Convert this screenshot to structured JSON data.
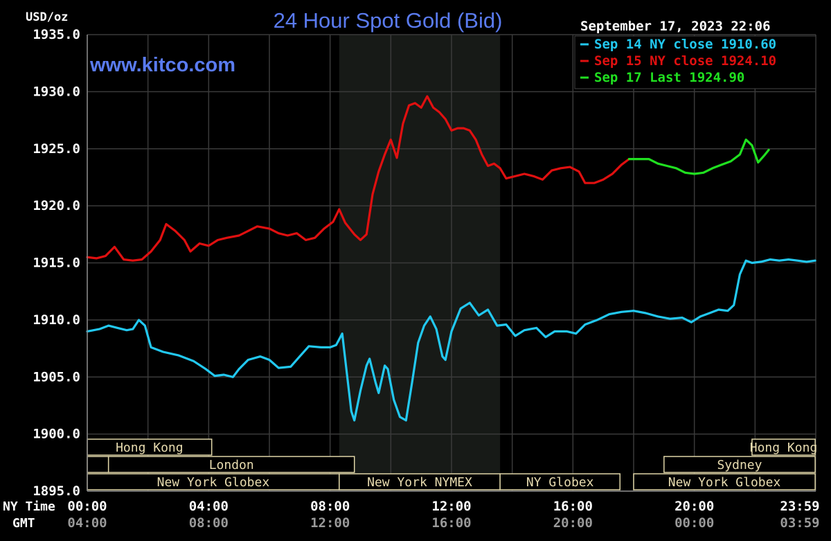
{
  "title": "24 Hour Spot Gold (Bid)",
  "unit_label": "USD/oz",
  "watermark": "www.kitco.com",
  "timestamp": "September 17, 2023 22:06",
  "row_labels": {
    "ny_time": "NY Time",
    "gmt": "GMT"
  },
  "colors": {
    "background": "#000000",
    "grid": "#3a3a3a",
    "shade": "#171a17",
    "title": "#5a7bf0",
    "sep14": "#22c8f0",
    "sep15": "#e01010",
    "sep17": "#20e020",
    "session_border": "#e0d6a8",
    "session_text": "#e8dcb0",
    "axis_text": "#ffffff",
    "gmt_text": "#9a9a9a"
  },
  "chart_data": {
    "type": "line",
    "ylabel": "USD/oz",
    "ylim": [
      1895.0,
      1935.0
    ],
    "y_ticks": [
      "1935.0",
      "1930.0",
      "1925.0",
      "1920.0",
      "1915.0",
      "1910.0",
      "1905.0",
      "1900.0",
      "1895.0"
    ],
    "xlim": [
      0,
      24
    ],
    "x_ticks_ny": [
      "00:00",
      "04:00",
      "08:00",
      "12:00",
      "16:00",
      "20:00",
      "23:59"
    ],
    "x_ticks_gmt": [
      "04:00",
      "08:00",
      "12:00",
      "16:00",
      "20:00",
      "00:00",
      "03:59"
    ],
    "grid": true,
    "shaded_period_hours": [
      8.3,
      13.6
    ],
    "legend": {
      "position": "top-right"
    },
    "series": [
      {
        "name": "Sep 14 NY close 1910.60",
        "color_key": "sep14",
        "points": [
          [
            0.0,
            1909.0
          ],
          [
            0.4,
            1909.2
          ],
          [
            0.7,
            1909.5
          ],
          [
            1.0,
            1909.3
          ],
          [
            1.3,
            1909.1
          ],
          [
            1.5,
            1909.2
          ],
          [
            1.7,
            1910.0
          ],
          [
            1.9,
            1909.5
          ],
          [
            2.1,
            1907.6
          ],
          [
            2.5,
            1907.2
          ],
          [
            3.0,
            1906.9
          ],
          [
            3.5,
            1906.4
          ],
          [
            3.9,
            1905.7
          ],
          [
            4.2,
            1905.1
          ],
          [
            4.5,
            1905.2
          ],
          [
            4.8,
            1905.0
          ],
          [
            5.0,
            1905.7
          ],
          [
            5.3,
            1906.5
          ],
          [
            5.7,
            1906.8
          ],
          [
            6.0,
            1906.5
          ],
          [
            6.3,
            1905.8
          ],
          [
            6.7,
            1905.9
          ],
          [
            7.0,
            1906.8
          ],
          [
            7.3,
            1907.7
          ],
          [
            7.7,
            1907.6
          ],
          [
            8.0,
            1907.6
          ],
          [
            8.2,
            1907.8
          ],
          [
            8.4,
            1908.8
          ],
          [
            8.5,
            1906.5
          ],
          [
            8.7,
            1902.0
          ],
          [
            8.8,
            1901.2
          ],
          [
            9.0,
            1903.8
          ],
          [
            9.2,
            1906.0
          ],
          [
            9.3,
            1906.6
          ],
          [
            9.5,
            1904.5
          ],
          [
            9.6,
            1903.6
          ],
          [
            9.8,
            1906.0
          ],
          [
            9.9,
            1905.7
          ],
          [
            10.1,
            1903.0
          ],
          [
            10.3,
            1901.5
          ],
          [
            10.5,
            1901.2
          ],
          [
            10.7,
            1904.5
          ],
          [
            10.9,
            1908.0
          ],
          [
            11.1,
            1909.5
          ],
          [
            11.3,
            1910.3
          ],
          [
            11.5,
            1909.2
          ],
          [
            11.7,
            1906.8
          ],
          [
            11.8,
            1906.5
          ],
          [
            12.0,
            1909.0
          ],
          [
            12.3,
            1911.0
          ],
          [
            12.6,
            1911.5
          ],
          [
            12.9,
            1910.4
          ],
          [
            13.2,
            1910.9
          ],
          [
            13.5,
            1909.5
          ],
          [
            13.8,
            1909.6
          ],
          [
            14.1,
            1908.6
          ],
          [
            14.4,
            1909.1
          ],
          [
            14.8,
            1909.3
          ],
          [
            15.1,
            1908.5
          ],
          [
            15.4,
            1909.0
          ],
          [
            15.8,
            1909.0
          ],
          [
            16.1,
            1908.8
          ],
          [
            16.4,
            1909.6
          ],
          [
            16.8,
            1910.0
          ],
          [
            17.2,
            1910.5
          ],
          [
            17.6,
            1910.7
          ],
          [
            18.0,
            1910.8
          ],
          [
            18.4,
            1910.6
          ],
          [
            18.8,
            1910.3
          ],
          [
            19.2,
            1910.1
          ],
          [
            19.6,
            1910.2
          ],
          [
            19.9,
            1909.8
          ],
          [
            20.2,
            1910.3
          ],
          [
            20.5,
            1910.6
          ],
          [
            20.8,
            1910.9
          ],
          [
            21.1,
            1910.8
          ],
          [
            21.3,
            1911.3
          ],
          [
            21.5,
            1914.0
          ],
          [
            21.7,
            1915.2
          ],
          [
            21.9,
            1915.0
          ],
          [
            22.2,
            1915.1
          ],
          [
            22.5,
            1915.3
          ],
          [
            22.8,
            1915.2
          ],
          [
            23.1,
            1915.3
          ],
          [
            23.4,
            1915.2
          ],
          [
            23.7,
            1915.1
          ],
          [
            23.98,
            1915.2
          ]
        ]
      },
      {
        "name": "Sep 15 NY close 1924.10",
        "color_key": "sep15",
        "points": [
          [
            0.0,
            1915.5
          ],
          [
            0.3,
            1915.4
          ],
          [
            0.6,
            1915.6
          ],
          [
            0.9,
            1916.4
          ],
          [
            1.2,
            1915.3
          ],
          [
            1.5,
            1915.2
          ],
          [
            1.8,
            1915.3
          ],
          [
            2.1,
            1916.0
          ],
          [
            2.4,
            1917.0
          ],
          [
            2.6,
            1918.4
          ],
          [
            2.9,
            1917.8
          ],
          [
            3.2,
            1917.0
          ],
          [
            3.4,
            1916.0
          ],
          [
            3.7,
            1916.7
          ],
          [
            4.0,
            1916.5
          ],
          [
            4.3,
            1917.0
          ],
          [
            4.6,
            1917.2
          ],
          [
            5.0,
            1917.4
          ],
          [
            5.3,
            1917.8
          ],
          [
            5.6,
            1918.2
          ],
          [
            6.0,
            1918.0
          ],
          [
            6.3,
            1917.6
          ],
          [
            6.6,
            1917.4
          ],
          [
            6.9,
            1917.6
          ],
          [
            7.2,
            1917.0
          ],
          [
            7.5,
            1917.2
          ],
          [
            7.8,
            1918.0
          ],
          [
            8.1,
            1918.6
          ],
          [
            8.3,
            1919.7
          ],
          [
            8.5,
            1918.5
          ],
          [
            8.8,
            1917.5
          ],
          [
            9.0,
            1917.0
          ],
          [
            9.2,
            1917.5
          ],
          [
            9.4,
            1921.0
          ],
          [
            9.6,
            1923.0
          ],
          [
            9.8,
            1924.5
          ],
          [
            10.0,
            1925.8
          ],
          [
            10.2,
            1924.2
          ],
          [
            10.4,
            1927.2
          ],
          [
            10.6,
            1928.8
          ],
          [
            10.8,
            1929.0
          ],
          [
            11.0,
            1928.6
          ],
          [
            11.2,
            1929.6
          ],
          [
            11.4,
            1928.6
          ],
          [
            11.6,
            1928.2
          ],
          [
            11.8,
            1927.6
          ],
          [
            12.0,
            1926.6
          ],
          [
            12.2,
            1926.8
          ],
          [
            12.4,
            1926.8
          ],
          [
            12.6,
            1926.6
          ],
          [
            12.8,
            1925.8
          ],
          [
            13.0,
            1924.5
          ],
          [
            13.2,
            1923.5
          ],
          [
            13.4,
            1923.7
          ],
          [
            13.6,
            1923.3
          ],
          [
            13.8,
            1922.4
          ],
          [
            14.1,
            1922.6
          ],
          [
            14.4,
            1922.8
          ],
          [
            14.7,
            1922.6
          ],
          [
            15.0,
            1922.3
          ],
          [
            15.3,
            1923.1
          ],
          [
            15.6,
            1923.3
          ],
          [
            15.9,
            1923.4
          ],
          [
            16.2,
            1923.0
          ],
          [
            16.4,
            1922.0
          ],
          [
            16.7,
            1922.0
          ],
          [
            17.0,
            1922.3
          ],
          [
            17.3,
            1922.8
          ],
          [
            17.6,
            1923.6
          ],
          [
            17.85,
            1924.1
          ]
        ]
      },
      {
        "name": "Sep 17 Last 1924.90",
        "color_key": "sep17",
        "points": [
          [
            17.85,
            1924.1
          ],
          [
            18.2,
            1924.1
          ],
          [
            18.5,
            1924.1
          ],
          [
            18.8,
            1923.7
          ],
          [
            19.1,
            1923.5
          ],
          [
            19.4,
            1923.3
          ],
          [
            19.7,
            1922.9
          ],
          [
            20.0,
            1922.8
          ],
          [
            20.3,
            1922.9
          ],
          [
            20.6,
            1923.3
          ],
          [
            20.9,
            1923.6
          ],
          [
            21.2,
            1923.9
          ],
          [
            21.5,
            1924.5
          ],
          [
            21.7,
            1925.8
          ],
          [
            21.9,
            1925.3
          ],
          [
            22.1,
            1923.8
          ],
          [
            22.3,
            1924.4
          ],
          [
            22.45,
            1924.9
          ]
        ]
      }
    ],
    "sessions": [
      {
        "label": "Hong Kong",
        "row": 0,
        "start": 0.0,
        "end": 4.1
      },
      {
        "label": "Hong Kong",
        "row": 0,
        "start": 21.9,
        "end": 23.98
      },
      {
        "label": "",
        "row": 1,
        "start": 0.0,
        "end": 0.7
      },
      {
        "label": "London",
        "row": 1,
        "start": 0.7,
        "end": 8.8
      },
      {
        "label": "Sydney",
        "row": 1,
        "start": 19.0,
        "end": 23.98
      },
      {
        "label": "New York Globex",
        "row": 2,
        "start": 0.0,
        "end": 8.3
      },
      {
        "label": "New York NYMEX",
        "row": 2,
        "start": 8.3,
        "end": 13.6
      },
      {
        "label": "NY Globex",
        "row": 2,
        "start": 13.6,
        "end": 17.55
      },
      {
        "label": "New York Globex",
        "row": 2,
        "start": 18.0,
        "end": 23.98
      }
    ]
  }
}
